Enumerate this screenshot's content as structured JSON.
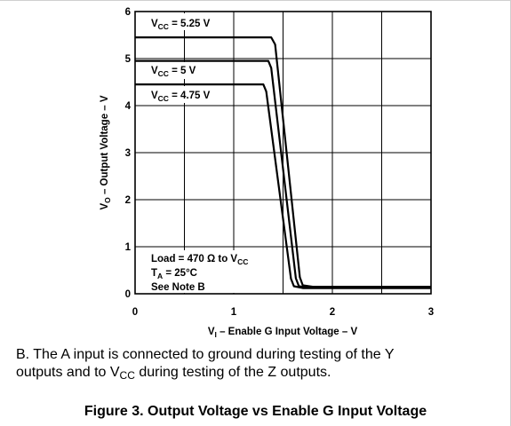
{
  "chart_data": {
    "type": "line",
    "xlabel": "V",
    "xlabel_sub": "I",
    "xlabel_rest": " – Enable G Input Voltage – V",
    "ylabel": "V",
    "ylabel_sub": "O",
    "ylabel_rest": " – Output Voltage – V",
    "xlim": [
      0,
      3
    ],
    "ylim": [
      0,
      6
    ],
    "xticks": [
      "0",
      "1",
      "2",
      "3"
    ],
    "yticks": [
      "0",
      "1",
      "2",
      "3",
      "4",
      "5",
      "6"
    ],
    "grid": true,
    "series": [
      {
        "name": "VCC = 5.25 V",
        "label_main": "V",
        "label_sub": "CC",
        "label_rest": " = 5.25 V",
        "points": [
          [
            0,
            5.45
          ],
          [
            1.38,
            5.45
          ],
          [
            1.42,
            5.3
          ],
          [
            1.67,
            0.35
          ],
          [
            1.7,
            0.18
          ],
          [
            1.8,
            0.15
          ],
          [
            3,
            0.15
          ]
        ]
      },
      {
        "name": "VCC = 5 V",
        "label_main": "V",
        "label_sub": "CC",
        "label_rest": " = 5 V",
        "points": [
          [
            0,
            4.95
          ],
          [
            1.35,
            4.95
          ],
          [
            1.38,
            4.8
          ],
          [
            1.63,
            0.33
          ],
          [
            1.66,
            0.16
          ],
          [
            1.75,
            0.13
          ],
          [
            3,
            0.13
          ]
        ]
      },
      {
        "name": "VCC = 4.75 V",
        "label_main": "V",
        "label_sub": "CC",
        "label_rest": " = 4.75 V",
        "points": [
          [
            0,
            4.45
          ],
          [
            1.3,
            4.45
          ],
          [
            1.33,
            4.3
          ],
          [
            1.58,
            0.32
          ],
          [
            1.61,
            0.16
          ],
          [
            1.7,
            0.12
          ],
          [
            3,
            0.12
          ]
        ]
      }
    ],
    "annotations": {
      "load_main": "Load = 470 Ω to V",
      "load_sub": "CC",
      "temp_main": "T",
      "temp_sub": "A",
      "temp_rest": " = 25°C",
      "note_ref": "See Note B"
    }
  },
  "note": {
    "line1": "B. The A input is connected to ground during testing of the Y",
    "line2_pre": "outputs and to V",
    "line2_sub": "CC",
    "line2_post": " during testing of the Z outputs."
  },
  "caption": "Figure 3. Output Voltage vs Enable G Input Voltage"
}
